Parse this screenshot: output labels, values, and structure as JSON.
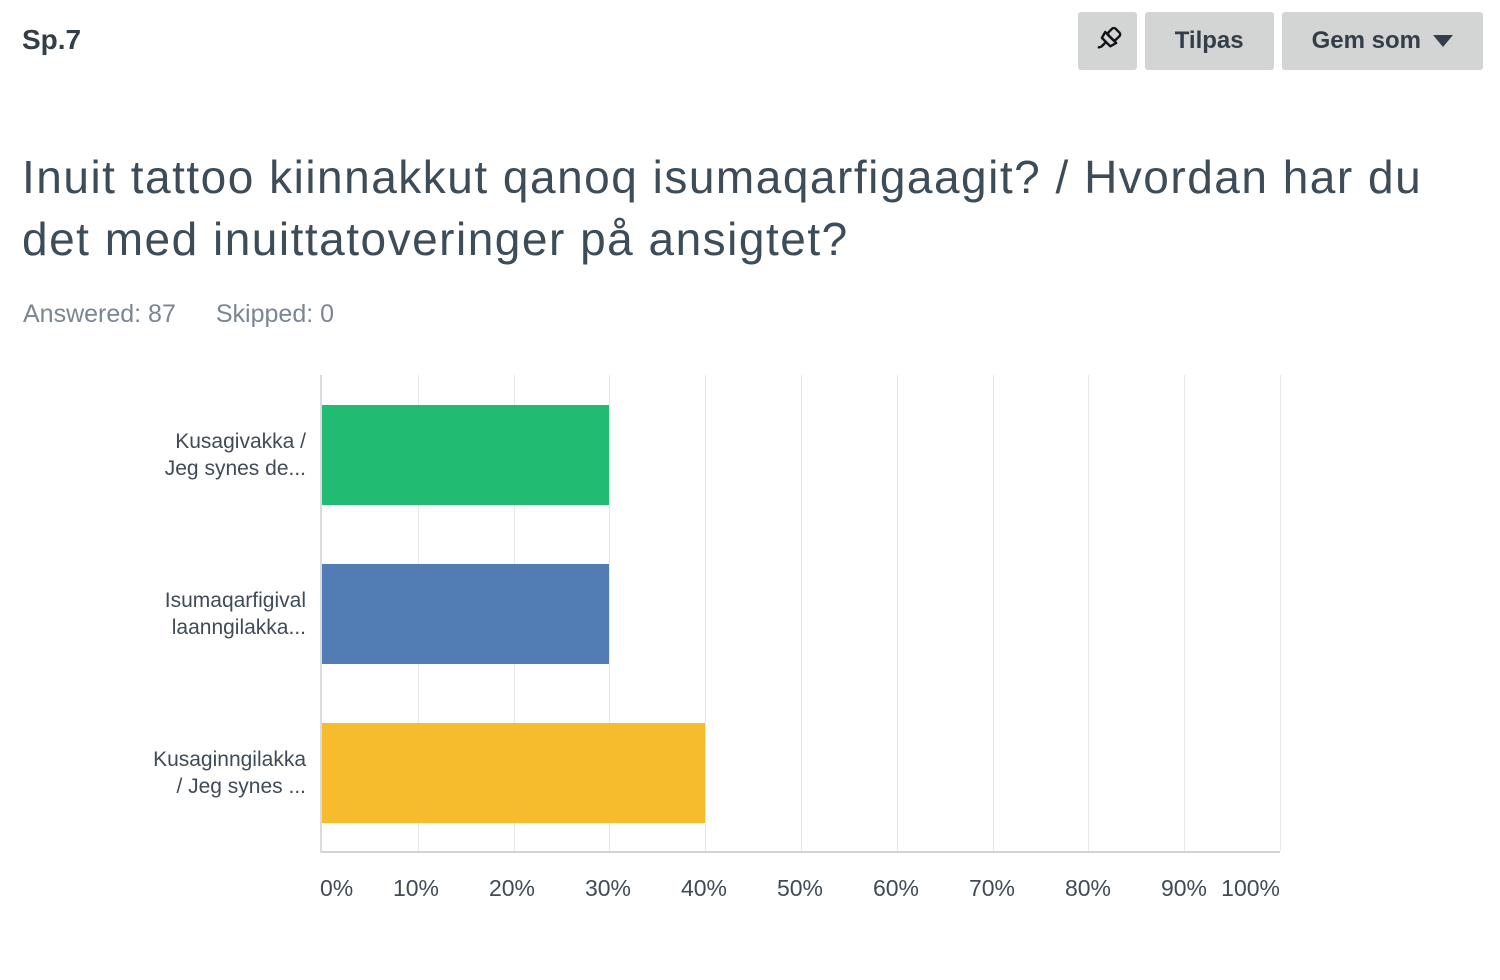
{
  "header": {
    "question_number": "Sp.7"
  },
  "toolbar": {
    "pin_button_icon": "pushpin-icon",
    "customize_label": "Tilpas",
    "save_as_label": "Gem som"
  },
  "question": {
    "title": "Inuit tattoo kiinnakkut qanoq isumaqarfigaagit? / Hvordan har du det med inuittatoveringer på ansigtet?",
    "answered_text": "Answered: 87",
    "skipped_text": "Skipped: 0"
  },
  "chart_data": {
    "type": "bar",
    "orientation": "horizontal",
    "title": "",
    "xlabel": "",
    "ylabel": "",
    "categories": [
      "Kusagivakka /\nJeg synes de...",
      "Isumaqarfigival\nlaanngilakka...",
      "Kusaginngilakka\n/ Jeg synes ..."
    ],
    "values": [
      30,
      30,
      40
    ],
    "unit": "%",
    "bar_colors": [
      "#21bb72",
      "#527db4",
      "#f7bc2e"
    ],
    "x_ticks": [
      "0%",
      "10%",
      "20%",
      "30%",
      "40%",
      "50%",
      "60%",
      "70%",
      "80%",
      "90%",
      "100%"
    ],
    "xlim": [
      0,
      100
    ],
    "grid": true,
    "legend": false
  },
  "colors": {
    "text_dark": "#333e48",
    "title_text": "#3d4c59",
    "stats_text": "#7a8691",
    "button_bg": "#d3d5d5",
    "gridline": "#e7e8e9",
    "axis_line": "#d1d5d6",
    "bar_green": "#21bb72",
    "bar_blue": "#527db4",
    "bar_yellow": "#f7bc2e"
  }
}
